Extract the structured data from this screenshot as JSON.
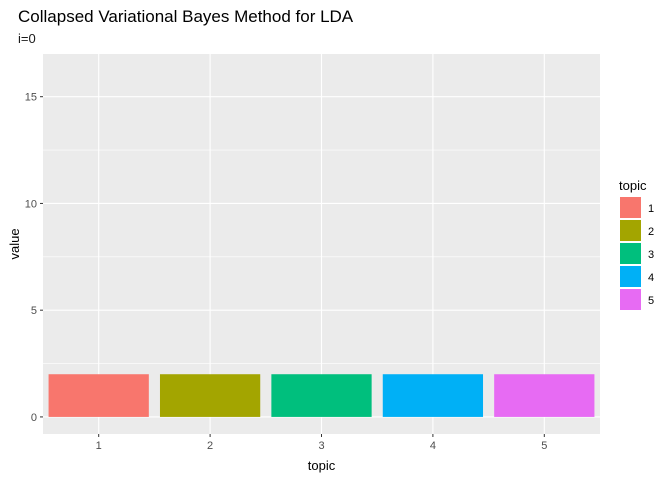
{
  "chart_data": {
    "type": "bar",
    "title": "Collapsed Variational Bayes Method for LDA",
    "subtitle": "i=0",
    "xlabel": "topic",
    "ylabel": "value",
    "categories": [
      "1",
      "2",
      "3",
      "4",
      "5"
    ],
    "values": [
      2,
      2,
      2,
      2,
      2
    ],
    "colors": [
      "#F8766D",
      "#A3A500",
      "#00BF7D",
      "#00B0F6",
      "#E76BF3"
    ],
    "ylim": [
      -0.8,
      17
    ],
    "yticks": [
      0,
      5,
      10,
      15
    ],
    "grid": true,
    "legend": {
      "title": "topic",
      "position": "right",
      "entries": [
        "1",
        "2",
        "3",
        "4",
        "5"
      ]
    }
  }
}
